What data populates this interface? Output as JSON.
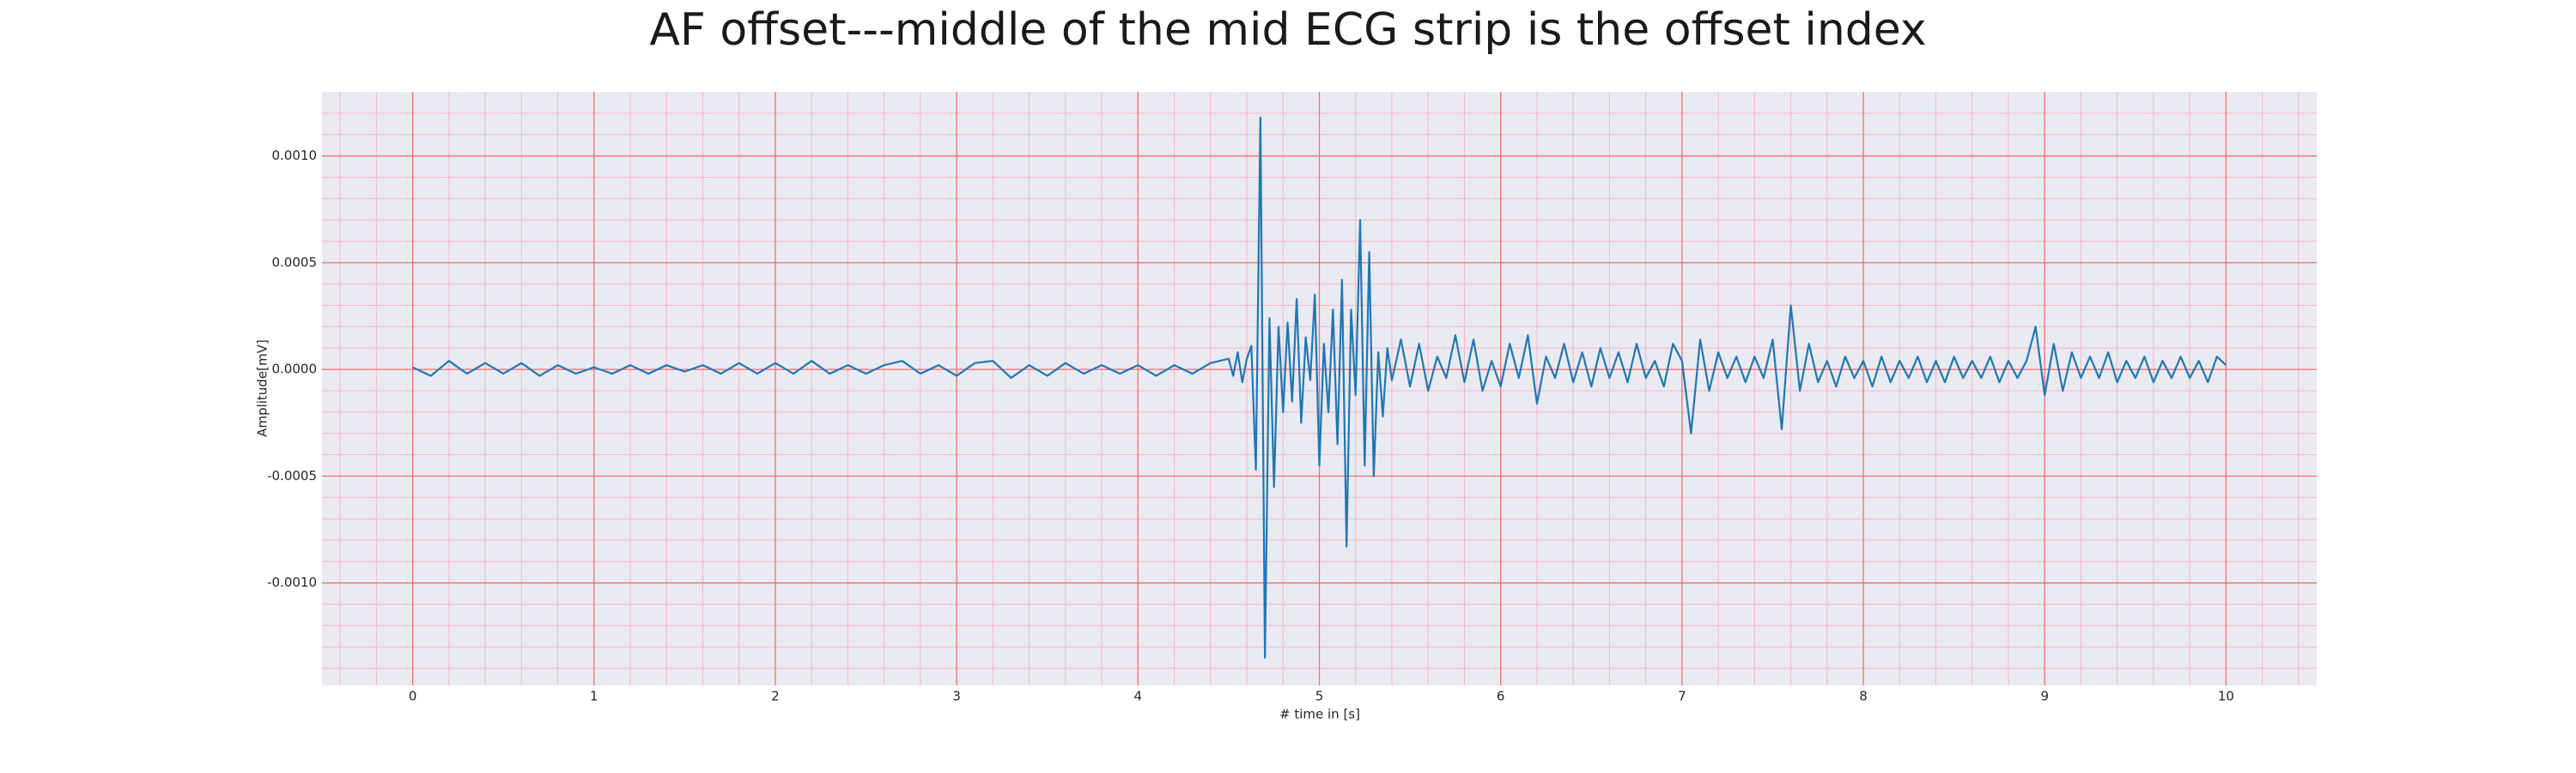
{
  "chart_data": {
    "type": "line",
    "title": "AF offset---middle of the mid ECG strip is the offset index",
    "xlabel": "# time in [s]",
    "ylabel": "Amplitude[mV]",
    "color": "#1f77b4",
    "grid": true,
    "minor_grid": true,
    "xlim": [
      -0.5,
      10.5
    ],
    "ylim": [
      -0.00148,
      0.0013
    ],
    "xticks": [
      0,
      1,
      2,
      3,
      4,
      5,
      6,
      7,
      8,
      9,
      10
    ],
    "yticks": [
      {
        "value": -0.001,
        "label": "-0.0010"
      },
      {
        "value": -0.0005,
        "label": "-0.0005"
      },
      {
        "value": 0,
        "label": "0.0000"
      },
      {
        "value": 0.0005,
        "label": "0.0005"
      },
      {
        "value": 0.001,
        "label": "0.0010"
      }
    ],
    "x": [
      0,
      0.1,
      0.2,
      0.3,
      0.4,
      0.5,
      0.6,
      0.7,
      0.8,
      0.9,
      1.0,
      1.1,
      1.2,
      1.3,
      1.4,
      1.5,
      1.6,
      1.7,
      1.8,
      1.9,
      2.0,
      2.1,
      2.2,
      2.3,
      2.4,
      2.5,
      2.6,
      2.7,
      2.8,
      2.9,
      3.0,
      3.1,
      3.2,
      3.3,
      3.4,
      3.5,
      3.6,
      3.7,
      3.8,
      3.9,
      4.0,
      4.1,
      4.2,
      4.3,
      4.4,
      4.5,
      4.525,
      4.55,
      4.575,
      4.6,
      4.625,
      4.65,
      4.675,
      4.7,
      4.725,
      4.75,
      4.775,
      4.8,
      4.825,
      4.85,
      4.875,
      4.9,
      4.925,
      4.95,
      4.975,
      5.0,
      5.025,
      5.05,
      5.075,
      5.1,
      5.125,
      5.15,
      5.175,
      5.2,
      5.225,
      5.25,
      5.275,
      5.3,
      5.325,
      5.35,
      5.375,
      5.4,
      5.45,
      5.5,
      5.55,
      5.6,
      5.65,
      5.7,
      5.75,
      5.8,
      5.85,
      5.9,
      5.95,
      6.0,
      6.05,
      6.1,
      6.15,
      6.2,
      6.25,
      6.3,
      6.35,
      6.4,
      6.45,
      6.5,
      6.55,
      6.6,
      6.65,
      6.7,
      6.75,
      6.8,
      6.85,
      6.9,
      6.95,
      7.0,
      7.05,
      7.1,
      7.15,
      7.2,
      7.25,
      7.3,
      7.35,
      7.4,
      7.45,
      7.5,
      7.55,
      7.6,
      7.65,
      7.7,
      7.75,
      7.8,
      7.85,
      7.9,
      7.95,
      8.0,
      8.05,
      8.1,
      8.15,
      8.2,
      8.25,
      8.3,
      8.35,
      8.4,
      8.45,
      8.5,
      8.55,
      8.6,
      8.65,
      8.7,
      8.75,
      8.8,
      8.85,
      8.9,
      8.95,
      9.0,
      9.05,
      9.1,
      9.15,
      9.2,
      9.25,
      9.3,
      9.35,
      9.4,
      9.45,
      9.5,
      9.55,
      9.6,
      9.65,
      9.7,
      9.75,
      9.8,
      9.85,
      9.9,
      9.95,
      10.0
    ],
    "values": [
      1e-05,
      -3e-05,
      4e-05,
      -2e-05,
      3e-05,
      -2e-05,
      3e-05,
      -3e-05,
      2e-05,
      -2e-05,
      1e-05,
      -2e-05,
      2e-05,
      -2e-05,
      2e-05,
      -1e-05,
      2e-05,
      -2e-05,
      3e-05,
      -2e-05,
      3e-05,
      -2e-05,
      4e-05,
      -2e-05,
      2e-05,
      -2e-05,
      2e-05,
      4e-05,
      -2e-05,
      2e-05,
      -3e-05,
      3e-05,
      4e-05,
      -4e-05,
      2e-05,
      -3e-05,
      3e-05,
      -2e-05,
      2e-05,
      -2e-05,
      2e-05,
      -3e-05,
      2e-05,
      -2e-05,
      3e-05,
      5e-05,
      -3e-05,
      8e-05,
      -6e-05,
      5e-05,
      0.00011,
      -0.00047,
      0.00118,
      -0.00135,
      0.00024,
      -0.00055,
      0.0002,
      -0.0002,
      0.00022,
      -0.00015,
      0.00033,
      -0.00025,
      0.00015,
      -5e-05,
      0.00035,
      -0.00045,
      0.00012,
      -0.0002,
      0.00028,
      -0.00035,
      0.00042,
      -0.00083,
      0.00028,
      -0.00012,
      0.0007,
      -0.00045,
      0.00055,
      -0.0005,
      8e-05,
      -0.00022,
      0.0001,
      -5e-05,
      0.00014,
      -8e-05,
      0.00012,
      -0.0001,
      6e-05,
      -4e-05,
      0.00016,
      -6e-05,
      0.00014,
      -0.0001,
      4e-05,
      -8e-05,
      0.00012,
      -4e-05,
      0.00016,
      -0.00016,
      6e-05,
      -4e-05,
      0.00012,
      -6e-05,
      8e-05,
      -8e-05,
      0.0001,
      -4e-05,
      8e-05,
      -6e-05,
      0.00012,
      -4e-05,
      4e-05,
      -8e-05,
      0.00012,
      4e-05,
      -0.0003,
      0.00014,
      -0.0001,
      8e-05,
      -4e-05,
      6e-05,
      -6e-05,
      6e-05,
      -4e-05,
      0.00014,
      -0.00028,
      0.0003,
      -0.0001,
      0.00012,
      -6e-05,
      4e-05,
      -8e-05,
      6e-05,
      -4e-05,
      4e-05,
      -8e-05,
      6e-05,
      -6e-05,
      4e-05,
      -4e-05,
      6e-05,
      -6e-05,
      4e-05,
      -6e-05,
      6e-05,
      -4e-05,
      4e-05,
      -4e-05,
      6e-05,
      -6e-05,
      4e-05,
      -4e-05,
      4e-05,
      0.0002,
      -0.00012,
      0.00012,
      -0.0001,
      8e-05,
      -4e-05,
      6e-05,
      -4e-05,
      8e-05,
      -6e-05,
      4e-05,
      -4e-05,
      6e-05,
      -6e-05,
      4e-05,
      -4e-05,
      6e-05,
      -4e-05,
      4e-05,
      -6e-05,
      6e-05,
      2e-05
    ]
  }
}
